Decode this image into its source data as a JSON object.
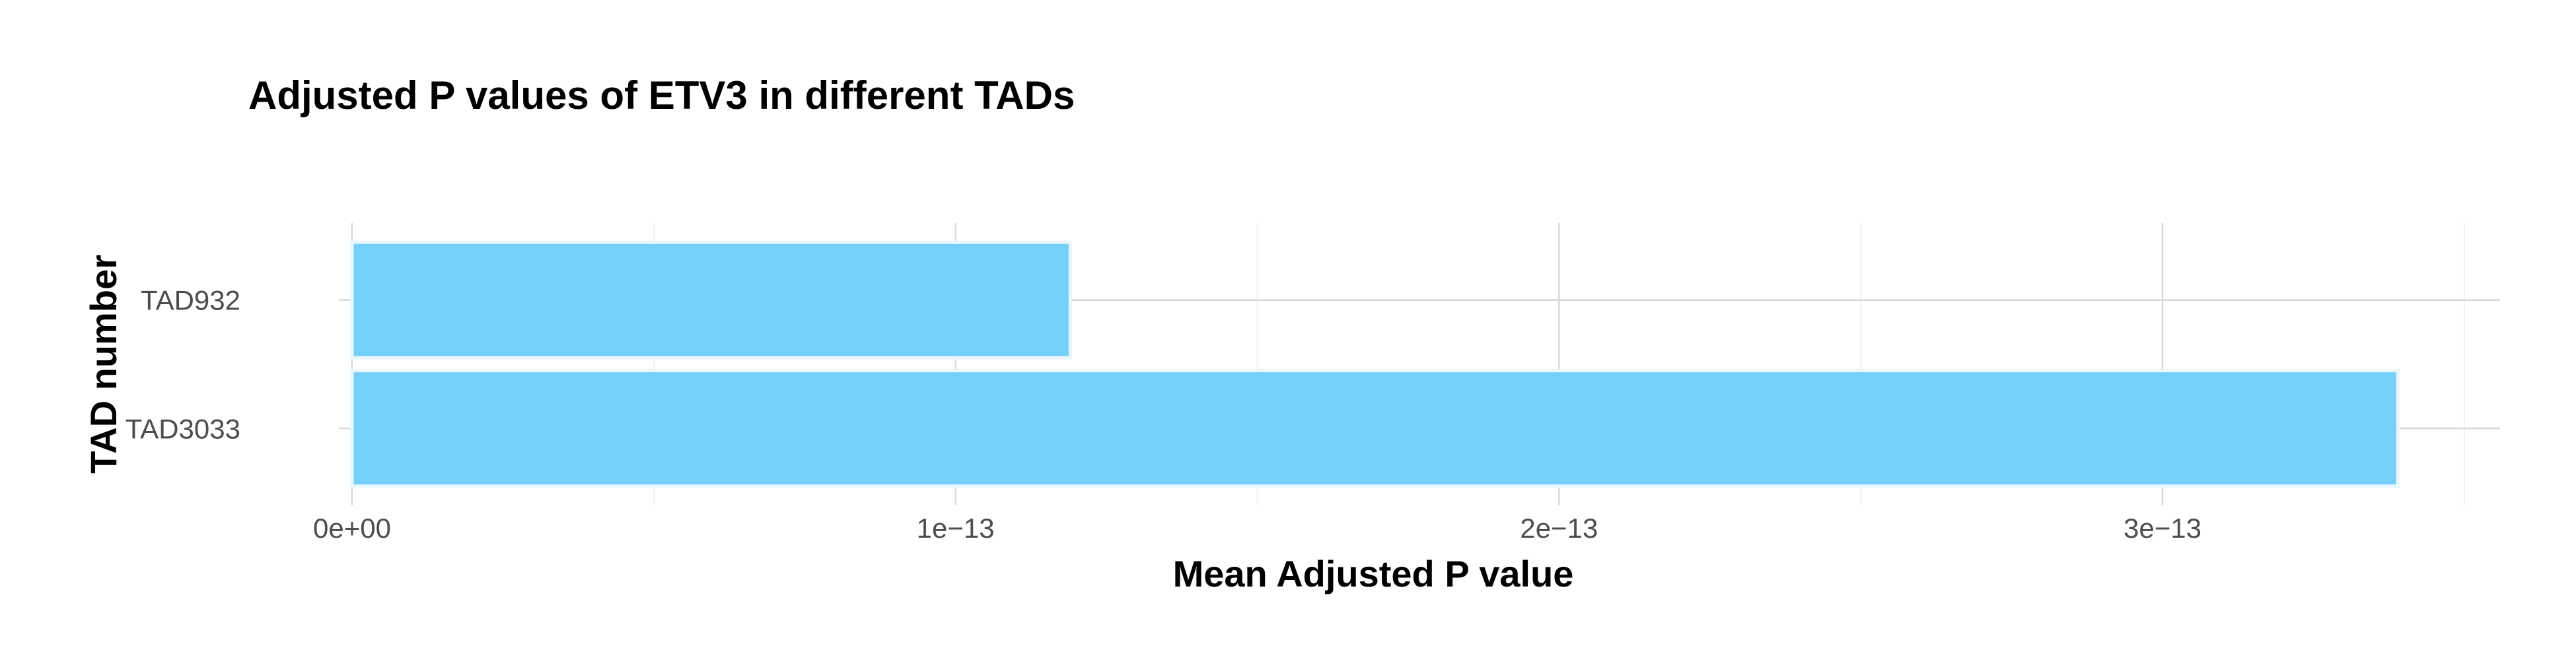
{
  "chart_data": {
    "type": "bar",
    "orientation": "horizontal",
    "title": "Adjusted P values of ETV3 in different TADs",
    "xlabel": "Mean Adjusted P value",
    "ylabel": "TAD number",
    "categories": [
      "TAD932",
      "TAD3033"
    ],
    "values": [
      1.19e-13,
      3.39e-13
    ],
    "xlim": [
      0,
      3.5e-13
    ],
    "x_ticks": [
      0,
      1e-13,
      2e-13,
      3e-13
    ],
    "x_tick_labels": [
      "0e+00",
      "1e−13",
      "2e−13",
      "3e−13"
    ],
    "bar_color": "#74CFFA",
    "bar_outline_color": "#EAF6FD",
    "grid": true,
    "legend": "none"
  }
}
